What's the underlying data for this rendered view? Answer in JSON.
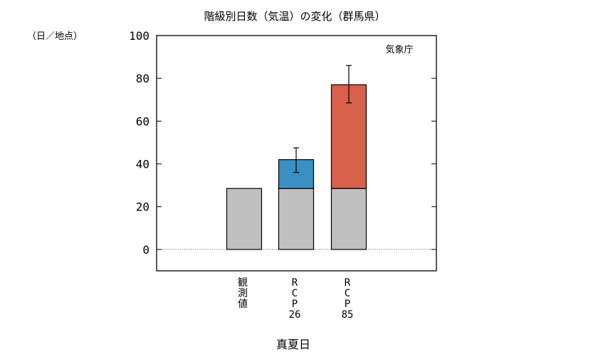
{
  "chart_data": {
    "type": "bar",
    "title": "階級別日数（気温）の変化（群馬県）",
    "unit_label": "（日／地点）",
    "source": "気象庁",
    "xlabel": "真夏日",
    "ylim": [
      -10,
      100
    ],
    "yticks": [
      0,
      20,
      40,
      60,
      80,
      100
    ],
    "grid": false,
    "categories": [
      {
        "label_lines": [
          "観",
          "測",
          "値"
        ]
      },
      {
        "label_lines": [
          "R",
          "C",
          "P",
          "26"
        ]
      },
      {
        "label_lines": [
          "R",
          "C",
          "P",
          "85"
        ]
      }
    ],
    "series": [
      {
        "role": "base",
        "color": "#c0c0c0",
        "values": [
          28.5,
          28.5,
          28.5
        ]
      },
      {
        "role": "change",
        "colors": [
          "#c0c0c0",
          "#3a8fc4",
          "#d9604b"
        ],
        "values": [
          0,
          13.5,
          48.5
        ]
      }
    ],
    "error_bars": [
      null,
      {
        "center": 42,
        "low": 36,
        "high": 47.5
      },
      {
        "center": 77,
        "low": 68.5,
        "high": 86
      }
    ]
  }
}
